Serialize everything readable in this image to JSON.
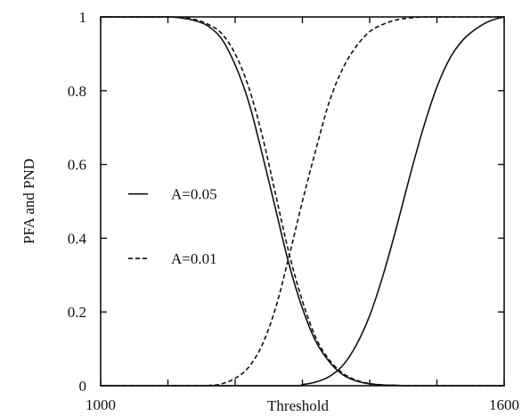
{
  "chart_data": {
    "type": "line",
    "title": "",
    "xlabel": "Threshold",
    "ylabel": "PFA and PND",
    "xlim": [
      1000,
      1600
    ],
    "ylim": [
      0,
      1
    ],
    "grid": false,
    "legend_position": "left-middle",
    "x_ticks": [
      1000,
      1100,
      1200,
      1300,
      1400,
      1500,
      1600
    ],
    "x_tick_labels": [
      "1000",
      "",
      "",
      "",
      "",
      "",
      "1600"
    ],
    "y_ticks": [
      0,
      0.2,
      0.4,
      0.6,
      0.8,
      1
    ],
    "y_tick_labels": [
      "0",
      "0.2",
      "0.4",
      "0.6",
      "0.8",
      "1"
    ],
    "legend": [
      {
        "label": "A=0.05",
        "style": "solid"
      },
      {
        "label": "A=0.01",
        "style": "dashed"
      }
    ],
    "series": [
      {
        "name": "A=0.05",
        "line_style": "solid",
        "kind": "PFA",
        "x": [
          1000,
          1050,
          1100,
          1120,
          1140,
          1160,
          1180,
          1200,
          1220,
          1240,
          1260,
          1280,
          1300,
          1320,
          1340,
          1360,
          1380,
          1400,
          1420,
          1440,
          1460,
          1500,
          1600
        ],
        "y": [
          1,
          1,
          1,
          0.997,
          0.99,
          0.975,
          0.94,
          0.87,
          0.77,
          0.63,
          0.48,
          0.33,
          0.21,
          0.12,
          0.065,
          0.03,
          0.013,
          0.005,
          0.002,
          0.001,
          0,
          0,
          0
        ]
      },
      {
        "name": "A=0.05",
        "line_style": "solid",
        "kind": "PND",
        "x": [
          1000,
          1100,
          1200,
          1290,
          1300,
          1320,
          1340,
          1360,
          1380,
          1400,
          1420,
          1440,
          1460,
          1480,
          1500,
          1520,
          1540,
          1560,
          1580,
          1600
        ],
        "y": [
          0,
          0,
          0,
          0,
          0.003,
          0.01,
          0.025,
          0.055,
          0.11,
          0.19,
          0.3,
          0.43,
          0.57,
          0.7,
          0.81,
          0.89,
          0.94,
          0.97,
          0.99,
          1
        ]
      },
      {
        "name": "A=0.01",
        "line_style": "dashed",
        "kind": "PFA",
        "x": [
          1000,
          1050,
          1100,
          1120,
          1140,
          1160,
          1180,
          1200,
          1220,
          1240,
          1260,
          1280,
          1300,
          1320,
          1340,
          1360,
          1380,
          1400,
          1420,
          1440,
          1460,
          1500,
          1600
        ],
        "y": [
          1,
          1,
          1,
          0.998,
          0.993,
          0.98,
          0.955,
          0.9,
          0.81,
          0.68,
          0.52,
          0.36,
          0.23,
          0.13,
          0.07,
          0.034,
          0.015,
          0.006,
          0.002,
          0.001,
          0,
          0,
          0
        ]
      },
      {
        "name": "A=0.01",
        "line_style": "dashed",
        "kind": "PND",
        "x": [
          1000,
          1100,
          1150,
          1170,
          1180,
          1200,
          1220,
          1240,
          1260,
          1280,
          1300,
          1320,
          1340,
          1360,
          1380,
          1400,
          1420,
          1440,
          1460,
          1480,
          1500,
          1600
        ],
        "y": [
          0,
          0,
          0,
          0.002,
          0.005,
          0.02,
          0.05,
          0.11,
          0.21,
          0.35,
          0.5,
          0.64,
          0.77,
          0.86,
          0.92,
          0.96,
          0.98,
          0.992,
          0.997,
          1,
          1,
          1
        ]
      }
    ]
  }
}
